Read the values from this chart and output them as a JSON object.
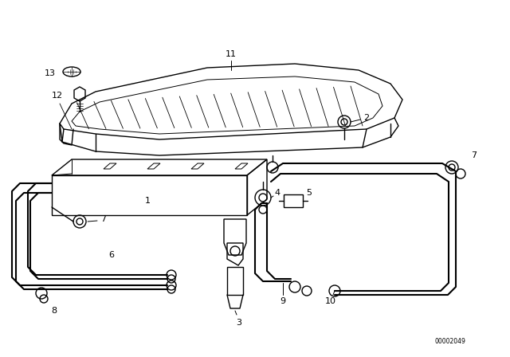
{
  "background_color": "#ffffff",
  "line_color": "#000000",
  "watermark": "00002049",
  "figsize": [
    6.4,
    4.48
  ],
  "dpi": 100
}
